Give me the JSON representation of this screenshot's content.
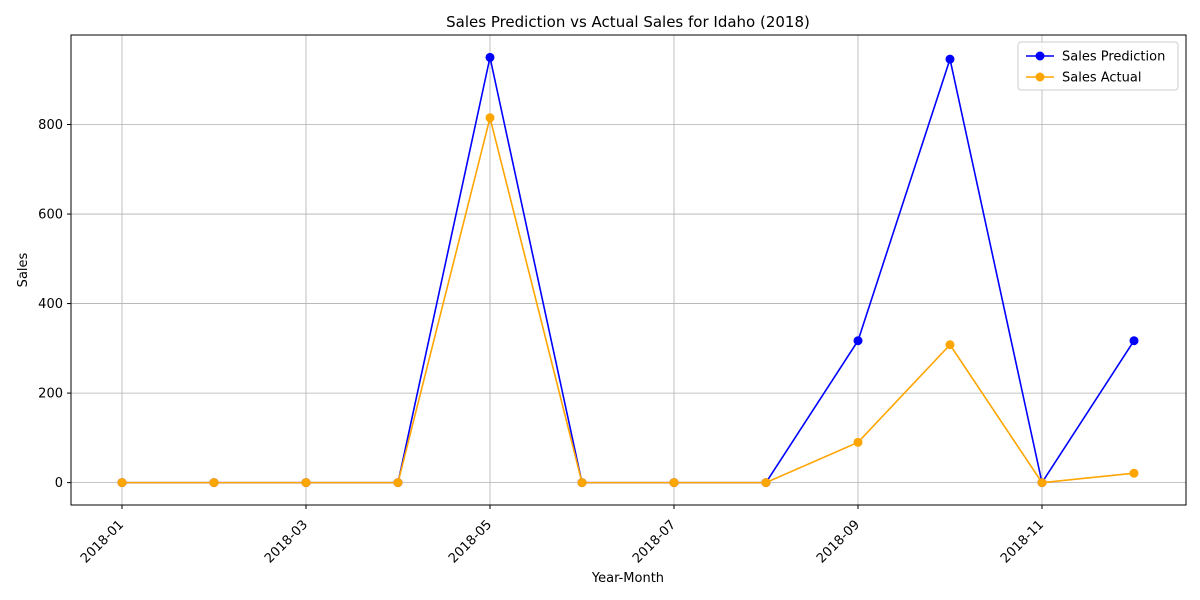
{
  "chart_data": {
    "type": "line",
    "title": "Sales Prediction vs Actual Sales for Idaho (2018)",
    "xlabel": "Year-Month",
    "ylabel": "Sales",
    "x": [
      "2018-01",
      "2018-02",
      "2018-03",
      "2018-04",
      "2018-05",
      "2018-06",
      "2018-07",
      "2018-08",
      "2018-09",
      "2018-10",
      "2018-11",
      "2018-12"
    ],
    "xticks": [
      "2018-01",
      "2018-03",
      "2018-05",
      "2018-07",
      "2018-09",
      "2018-11"
    ],
    "yticks": [
      0,
      200,
      400,
      600,
      800
    ],
    "ylim": [
      -50,
      1000
    ],
    "grid": true,
    "legend_position": "top-right",
    "series": [
      {
        "name": "Sales Prediction",
        "color": "#0000ff",
        "values": [
          0,
          0,
          0,
          0,
          950,
          0,
          0,
          0,
          317,
          946,
          0,
          317
        ]
      },
      {
        "name": "Sales Actual",
        "color": "#ffa500",
        "values": [
          0,
          0,
          0,
          0,
          815,
          0,
          0,
          0,
          90,
          308,
          0,
          21
        ]
      }
    ]
  }
}
